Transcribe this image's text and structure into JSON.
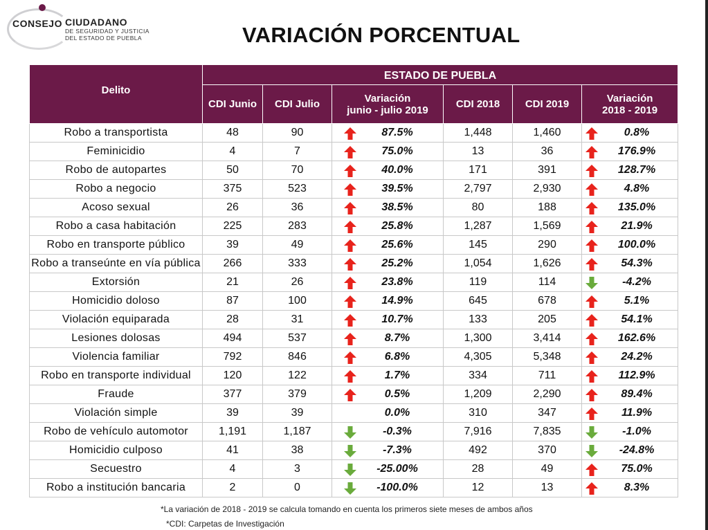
{
  "logo": {
    "consejo": "CONSEJO",
    "ciudadano": "CIUDADANO",
    "line1": "DE SEGURIDAD Y JUSTICIA",
    "line2": "DEL ESTADO DE PUEBLA"
  },
  "title": "VARIACIÓN PORCENTUAL",
  "table": {
    "col_delito": "Delito",
    "group_header": "ESTADO DE PUEBLA",
    "col_cdi_junio": "CDI Junio",
    "col_cdi_julio": "CDI Julio",
    "col_var1_line1": "Variación",
    "col_var1_line2": "junio - julio 2019",
    "col_cdi_2018": "CDI 2018",
    "col_cdi_2019": "CDI 2019",
    "col_var2_line1": "Variación",
    "col_var2_line2": "2018 - 2019",
    "colors": {
      "header": "#6b1a48",
      "up": "#e8231c",
      "down": "#6aab3c"
    },
    "rows": [
      {
        "delito": "Robo a transportista",
        "junio": "48",
        "julio": "90",
        "var1": "87.5%",
        "dir1": "up",
        "y2018": "1,448",
        "y2019": "1,460",
        "var2": "0.8%",
        "dir2": "up"
      },
      {
        "delito": "Feminicidio",
        "junio": "4",
        "julio": "7",
        "var1": "75.0%",
        "dir1": "up",
        "y2018": "13",
        "y2019": "36",
        "var2": "176.9%",
        "dir2": "up"
      },
      {
        "delito": "Robo de autopartes",
        "junio": "50",
        "julio": "70",
        "var1": "40.0%",
        "dir1": "up",
        "y2018": "171",
        "y2019": "391",
        "var2": "128.7%",
        "dir2": "up"
      },
      {
        "delito": "Robo a negocio",
        "junio": "375",
        "julio": "523",
        "var1": "39.5%",
        "dir1": "up",
        "y2018": "2,797",
        "y2019": "2,930",
        "var2": "4.8%",
        "dir2": "up"
      },
      {
        "delito": "Acoso sexual",
        "junio": "26",
        "julio": "36",
        "var1": "38.5%",
        "dir1": "up",
        "y2018": "80",
        "y2019": "188",
        "var2": "135.0%",
        "dir2": "up"
      },
      {
        "delito": "Robo a casa habitación",
        "junio": "225",
        "julio": "283",
        "var1": "25.8%",
        "dir1": "up",
        "y2018": "1,287",
        "y2019": "1,569",
        "var2": "21.9%",
        "dir2": "up"
      },
      {
        "delito": "Robo en transporte público",
        "junio": "39",
        "julio": "49",
        "var1": "25.6%",
        "dir1": "up",
        "y2018": "145",
        "y2019": "290",
        "var2": "100.0%",
        "dir2": "up"
      },
      {
        "delito": "Robo a transeúnte en vía pública",
        "junio": "266",
        "julio": "333",
        "var1": "25.2%",
        "dir1": "up",
        "y2018": "1,054",
        "y2019": "1,626",
        "var2": "54.3%",
        "dir2": "up"
      },
      {
        "delito": "Extorsión",
        "junio": "21",
        "julio": "26",
        "var1": "23.8%",
        "dir1": "up",
        "y2018": "119",
        "y2019": "114",
        "var2": "-4.2%",
        "dir2": "down"
      },
      {
        "delito": "Homicidio doloso",
        "junio": "87",
        "julio": "100",
        "var1": "14.9%",
        "dir1": "up",
        "y2018": "645",
        "y2019": "678",
        "var2": "5.1%",
        "dir2": "up"
      },
      {
        "delito": "Violación equiparada",
        "junio": "28",
        "julio": "31",
        "var1": "10.7%",
        "dir1": "up",
        "y2018": "133",
        "y2019": "205",
        "var2": "54.1%",
        "dir2": "up"
      },
      {
        "delito": "Lesiones dolosas",
        "junio": "494",
        "julio": "537",
        "var1": "8.7%",
        "dir1": "up",
        "y2018": "1,300",
        "y2019": "3,414",
        "var2": "162.6%",
        "dir2": "up"
      },
      {
        "delito": "Violencia familiar",
        "junio": "792",
        "julio": "846",
        "var1": "6.8%",
        "dir1": "up",
        "y2018": "4,305",
        "y2019": "5,348",
        "var2": "24.2%",
        "dir2": "up"
      },
      {
        "delito": "Robo en transporte individual",
        "junio": "120",
        "julio": "122",
        "var1": "1.7%",
        "dir1": "up",
        "y2018": "334",
        "y2019": "711",
        "var2": "112.9%",
        "dir2": "up"
      },
      {
        "delito": "Fraude",
        "junio": "377",
        "julio": "379",
        "var1": "0.5%",
        "dir1": "up",
        "y2018": "1,209",
        "y2019": "2,290",
        "var2": "89.4%",
        "dir2": "up"
      },
      {
        "delito": "Violación simple",
        "junio": "39",
        "julio": "39",
        "var1": "0.0%",
        "dir1": "none",
        "y2018": "310",
        "y2019": "347",
        "var2": "11.9%",
        "dir2": "up"
      },
      {
        "delito": "Robo de vehículo automotor",
        "junio": "1,191",
        "julio": "1,187",
        "var1": "-0.3%",
        "dir1": "down",
        "y2018": "7,916",
        "y2019": "7,835",
        "var2": "-1.0%",
        "dir2": "down"
      },
      {
        "delito": "Homicidio culposo",
        "junio": "41",
        "julio": "38",
        "var1": "-7.3%",
        "dir1": "down",
        "y2018": "492",
        "y2019": "370",
        "var2": "-24.8%",
        "dir2": "down"
      },
      {
        "delito": "Secuestro",
        "junio": "4",
        "julio": "3",
        "var1": "-25.00%",
        "dir1": "down",
        "y2018": "28",
        "y2019": "49",
        "var2": "75.0%",
        "dir2": "up"
      },
      {
        "delito": "Robo a institución bancaria",
        "junio": "2",
        "julio": "0",
        "var1": "-100.0%",
        "dir1": "down",
        "y2018": "12",
        "y2019": "13",
        "var2": "8.3%",
        "dir2": "up"
      }
    ]
  },
  "notes": {
    "note1": "*La variación de 2018 - 2019  se calcula tomando en cuenta los primeros siete meses de ambos años",
    "note2": "*CDI: Carpetas de Investigación"
  }
}
